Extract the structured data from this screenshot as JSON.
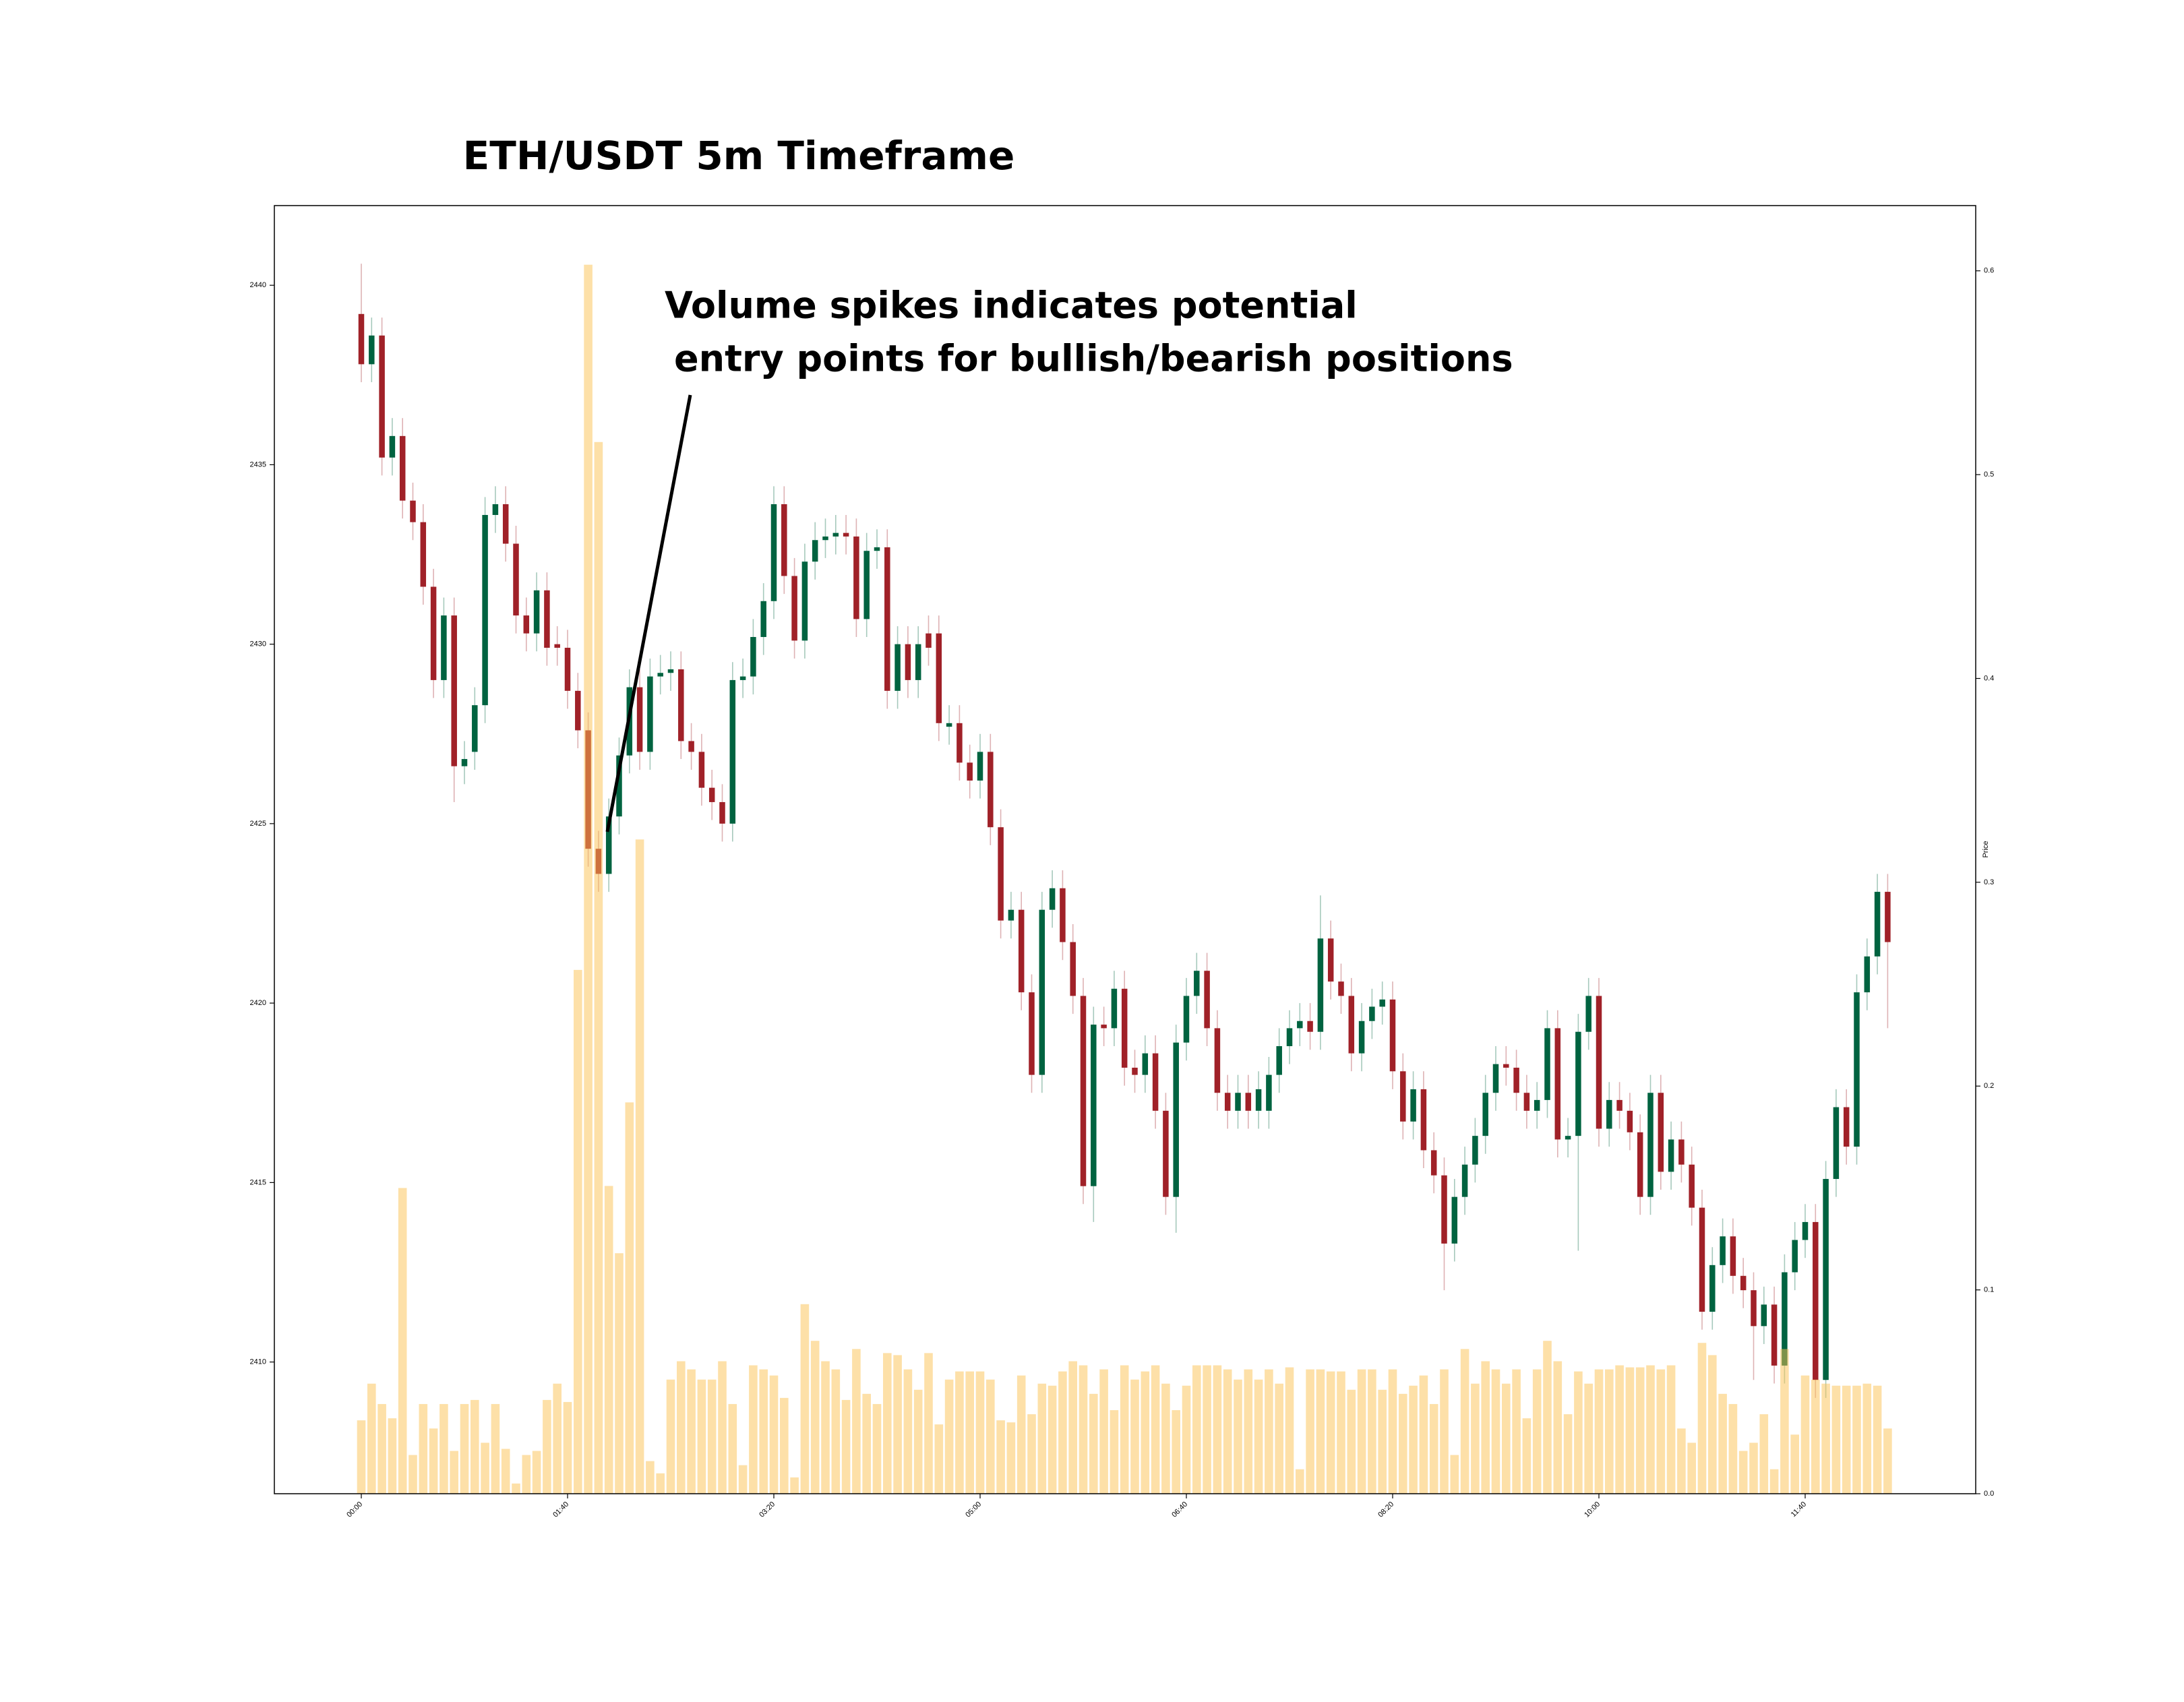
{
  "chart_data": {
    "type": "candlestick",
    "title": "ETH/USDT 5m Timeframe",
    "annotation": [
      "Volume spikes indicates potential",
      "entry points for bullish/bearish positions"
    ],
    "y2label": "Price",
    "up_color": "#006340",
    "down_color": "#a02128",
    "volume_color": "#fbc252",
    "categories": [
      "00:00",
      null,
      null,
      null,
      null,
      null,
      null,
      null,
      null,
      null,
      null,
      null,
      null,
      null,
      null,
      null,
      null,
      null,
      null,
      null,
      "01:40",
      null,
      null,
      null,
      null,
      null,
      null,
      null,
      null,
      null,
      null,
      null,
      null,
      null,
      null,
      null,
      null,
      null,
      null,
      null,
      "03:20",
      null,
      null,
      null,
      null,
      null,
      null,
      null,
      null,
      null,
      null,
      null,
      null,
      null,
      null,
      null,
      null,
      null,
      null,
      null,
      "05:00",
      null,
      null,
      null,
      null,
      null,
      null,
      null,
      null,
      null,
      null,
      null,
      null,
      null,
      null,
      null,
      null,
      null,
      null,
      null,
      "06:40",
      null,
      null,
      null,
      null,
      null,
      null,
      null,
      null,
      null,
      null,
      null,
      null,
      null,
      null,
      null,
      null,
      null,
      null,
      null,
      "08:20",
      null,
      null,
      null,
      null,
      null,
      null,
      null,
      null,
      null,
      null,
      null,
      null,
      null,
      null,
      null,
      null,
      null,
      null,
      null,
      "10:00",
      null,
      null,
      null,
      null,
      null,
      null,
      null,
      null,
      null,
      null,
      null,
      null,
      null,
      null,
      null,
      null,
      null,
      null,
      null,
      "11:40",
      null,
      null,
      null,
      null,
      null,
      null,
      null,
      null
    ],
    "open": [
      2439.2,
      2437.8,
      2438.6,
      2435.2,
      2435.8,
      2434.0,
      2433.4,
      2431.6,
      2429.0,
      2430.8,
      2426.6,
      2427.0,
      2428.3,
      2433.6,
      2433.9,
      2432.8,
      2430.8,
      2430.3,
      2431.5,
      2430.0,
      2429.9,
      2428.7,
      2427.6,
      2424.3,
      2423.6,
      2425.2,
      2426.9,
      2428.8,
      2427.0,
      2429.1,
      2429.2,
      2429.3,
      2427.3,
      2427.0,
      2426.0,
      2425.6,
      2425.0,
      2429.0,
      2429.1,
      2430.2,
      2431.2,
      2433.9,
      2431.9,
      2430.1,
      2432.3,
      2432.9,
      2433.0,
      2433.1,
      2433.0,
      2430.7,
      2432.6,
      2432.7,
      2428.7,
      2430.0,
      2429.0,
      2430.3,
      2430.3,
      2427.7,
      2427.8,
      2426.7,
      2426.2,
      2427.0,
      2424.9,
      2422.3,
      2422.6,
      2420.3,
      2418.0,
      2422.6,
      2423.2,
      2421.7,
      2420.2,
      2414.9,
      2419.4,
      2419.3,
      2420.4,
      2418.2,
      2418.0,
      2418.6,
      2417.0,
      2414.6,
      2418.9,
      2420.2,
      2420.9,
      2419.3,
      2417.5,
      2417.0,
      2417.5,
      2417.0,
      2417.0,
      2418.0,
      2418.8,
      2419.3,
      2419.5,
      2419.2,
      2421.8,
      2420.6,
      2420.2,
      2418.6,
      2419.5,
      2419.9,
      2420.1,
      2418.1,
      2416.7,
      2417.6,
      2415.9,
      2415.2,
      2413.3,
      2414.6,
      2415.5,
      2416.3,
      2417.5,
      2418.3,
      2418.2,
      2417.5,
      2417.0,
      2417.3,
      2419.3,
      2416.2,
      2416.3,
      2419.2,
      2420.2,
      2416.5,
      2417.3,
      2417.0,
      2416.4,
      2414.6,
      2417.5,
      2415.3,
      2416.2,
      2415.5,
      2414.3,
      2411.4,
      2412.7,
      2413.5,
      2412.4,
      2412.0,
      2411.0,
      2411.6,
      2409.9,
      2412.5,
      2413.4,
      2413.9,
      2409.5,
      2415.1,
      2417.1,
      2416.0,
      2420.3,
      2421.3,
      2423.1
    ],
    "high": [
      2440.6,
      2439.1,
      2439.1,
      2436.3,
      2436.3,
      2434.5,
      2433.9,
      2432.1,
      2431.3,
      2431.3,
      2427.3,
      2428.8,
      2434.1,
      2434.4,
      2434.4,
      2433.3,
      2431.3,
      2432.0,
      2432.0,
      2430.5,
      2430.4,
      2429.2,
      2428.1,
      2424.8,
      2425.7,
      2427.4,
      2429.3,
      2429.3,
      2429.6,
      2429.7,
      2429.8,
      2429.8,
      2427.8,
      2427.5,
      2426.5,
      2426.1,
      2429.5,
      2429.6,
      2430.7,
      2431.7,
      2434.4,
      2434.4,
      2432.4,
      2432.8,
      2433.4,
      2433.5,
      2433.6,
      2433.6,
      2433.5,
      2433.1,
      2433.2,
      2433.2,
      2430.5,
      2430.5,
      2430.5,
      2430.8,
      2430.8,
      2428.3,
      2428.3,
      2427.2,
      2427.5,
      2427.5,
      2425.4,
      2423.1,
      2423.1,
      2420.8,
      2423.1,
      2423.7,
      2423.7,
      2422.2,
      2420.7,
      2419.9,
      2419.9,
      2420.9,
      2420.9,
      2418.7,
      2419.1,
      2419.1,
      2417.5,
      2419.4,
      2420.7,
      2421.4,
      2421.4,
      2419.8,
      2418.0,
      2418.0,
      2418.0,
      2418.1,
      2418.5,
      2419.3,
      2419.8,
      2420.0,
      2420.0,
      2423.0,
      2422.3,
      2421.1,
      2420.7,
      2420.0,
      2420.4,
      2420.6,
      2420.6,
      2418.6,
      2418.1,
      2418.1,
      2416.4,
      2415.7,
      2415.1,
      2416.0,
      2416.8,
      2418.0,
      2418.8,
      2418.8,
      2418.7,
      2418.0,
      2417.8,
      2419.8,
      2419.8,
      2416.8,
      2419.7,
      2420.7,
      2420.7,
      2417.8,
      2417.8,
      2417.5,
      2416.9,
      2418.0,
      2418.0,
      2416.7,
      2416.7,
      2416.0,
      2414.8,
      2413.2,
      2414.0,
      2414.0,
      2412.9,
      2412.5,
      2412.1,
      2412.1,
      2413.0,
      2413.9,
      2414.4,
      2414.4,
      2415.6,
      2417.6,
      2417.6,
      2420.8,
      2421.8,
      2423.6,
      2423.6
    ],
    "low": [
      2437.3,
      2437.3,
      2434.7,
      2434.7,
      2433.5,
      2432.9,
      2431.1,
      2428.5,
      2428.5,
      2425.6,
      2426.1,
      2426.5,
      2427.8,
      2433.1,
      2432.3,
      2430.3,
      2429.8,
      2429.8,
      2429.4,
      2429.4,
      2428.2,
      2427.1,
      2423.8,
      2423.1,
      2423.1,
      2424.7,
      2426.4,
      2426.5,
      2426.5,
      2428.6,
      2428.7,
      2426.8,
      2426.5,
      2425.5,
      2425.1,
      2424.5,
      2424.5,
      2428.5,
      2428.6,
      2429.7,
      2430.7,
      2431.4,
      2429.6,
      2429.6,
      2431.8,
      2432.4,
      2432.5,
      2432.5,
      2430.2,
      2430.2,
      2432.1,
      2428.2,
      2428.2,
      2428.5,
      2428.5,
      2429.4,
      2427.3,
      2427.2,
      2426.2,
      2425.7,
      2425.7,
      2424.4,
      2421.8,
      2421.8,
      2419.8,
      2417.5,
      2417.5,
      2422.1,
      2421.2,
      2419.7,
      2414.4,
      2413.9,
      2418.8,
      2418.8,
      2417.7,
      2417.5,
      2417.5,
      2416.5,
      2414.1,
      2413.6,
      2418.4,
      2419.7,
      2418.8,
      2417.0,
      2416.5,
      2416.5,
      2416.5,
      2416.5,
      2416.5,
      2417.5,
      2418.3,
      2418.8,
      2418.7,
      2418.7,
      2420.1,
      2419.7,
      2418.1,
      2418.1,
      2419.0,
      2419.4,
      2417.6,
      2416.2,
      2416.2,
      2415.4,
      2414.7,
      2412.0,
      2412.8,
      2414.1,
      2415.0,
      2415.8,
      2417.0,
      2417.7,
      2417.0,
      2416.5,
      2416.5,
      2416.8,
      2415.7,
      2415.7,
      2413.1,
      2418.7,
      2416.0,
      2416.0,
      2416.5,
      2415.9,
      2414.1,
      2414.1,
      2414.8,
      2414.8,
      2415.0,
      2413.8,
      2410.9,
      2410.9,
      2412.2,
      2411.9,
      2411.5,
      2409.5,
      2410.5,
      2409.4,
      2409.4,
      2412.0,
      2412.9,
      2409.0,
      2409.0,
      2414.6,
      2415.5,
      2415.5,
      2419.8,
      2420.8,
      2419.3
    ],
    "close": [
      2437.8,
      2438.6,
      2435.2,
      2435.8,
      2434.0,
      2433.4,
      2431.6,
      2429.0,
      2430.8,
      2426.6,
      2426.8,
      2428.3,
      2433.6,
      2433.9,
      2432.8,
      2430.8,
      2430.3,
      2431.5,
      2429.9,
      2429.9,
      2428.7,
      2427.6,
      2424.3,
      2423.6,
      2425.2,
      2426.9,
      2428.8,
      2427.0,
      2429.1,
      2429.2,
      2429.3,
      2427.3,
      2427.0,
      2426.0,
      2425.6,
      2425.0,
      2429.0,
      2429.1,
      2430.2,
      2431.2,
      2433.9,
      2431.9,
      2430.1,
      2432.3,
      2432.9,
      2433.0,
      2433.1,
      2433.0,
      2430.7,
      2432.6,
      2432.7,
      2428.7,
      2430.0,
      2429.0,
      2430.0,
      2429.9,
      2427.8,
      2427.8,
      2426.7,
      2426.2,
      2427.0,
      2424.9,
      2422.3,
      2422.6,
      2420.3,
      2418.0,
      2422.6,
      2423.2,
      2421.7,
      2420.2,
      2414.9,
      2419.4,
      2419.3,
      2420.4,
      2418.2,
      2418.0,
      2418.6,
      2417.0,
      2414.6,
      2418.9,
      2420.2,
      2420.9,
      2419.3,
      2417.5,
      2417.0,
      2417.5,
      2417.0,
      2417.6,
      2418.0,
      2418.8,
      2419.3,
      2419.5,
      2419.2,
      2421.8,
      2420.6,
      2420.2,
      2418.6,
      2419.5,
      2419.9,
      2420.1,
      2418.1,
      2416.7,
      2417.6,
      2415.9,
      2415.2,
      2413.3,
      2414.6,
      2415.5,
      2416.3,
      2417.5,
      2418.3,
      2418.2,
      2417.5,
      2417.0,
      2417.3,
      2419.3,
      2416.2,
      2416.3,
      2419.2,
      2420.2,
      2416.5,
      2417.3,
      2417.0,
      2416.4,
      2414.6,
      2417.5,
      2415.3,
      2416.2,
      2415.5,
      2414.3,
      2411.4,
      2412.7,
      2413.5,
      2412.4,
      2412.0,
      2411.0,
      2411.6,
      2409.9,
      2412.5,
      2413.4,
      2413.9,
      2409.5,
      2415.1,
      2417.1,
      2416.0,
      2420.3,
      2421.3,
      2423.1,
      2421.7
    ],
    "volume": [
      0.036,
      0.054,
      0.044,
      0.037,
      0.15,
      0.019,
      0.044,
      0.032,
      0.044,
      0.021,
      0.044,
      0.046,
      0.025,
      0.044,
      0.022,
      0.005,
      0.019,
      0.021,
      0.046,
      0.054,
      0.045,
      0.257,
      0.603,
      0.516,
      0.151,
      0.118,
      0.192,
      0.321,
      0.016,
      0.01,
      0.056,
      0.065,
      0.061,
      0.056,
      0.056,
      0.065,
      0.044,
      0.014,
      0.063,
      0.061,
      0.058,
      0.047,
      0.008,
      0.093,
      0.075,
      0.065,
      0.061,
      0.046,
      0.071,
      0.049,
      0.044,
      0.069,
      0.068,
      0.061,
      0.051,
      0.069,
      0.034,
      0.056,
      0.06,
      0.06,
      0.06,
      0.056,
      0.036,
      0.035,
      0.058,
      0.039,
      0.054,
      0.053,
      0.06,
      0.065,
      0.063,
      0.049,
      0.061,
      0.041,
      0.063,
      0.056,
      0.06,
      0.063,
      0.054,
      0.041,
      0.053,
      0.063,
      0.063,
      0.063,
      0.061,
      0.056,
      0.061,
      0.056,
      0.061,
      0.054,
      0.062,
      0.012,
      0.061,
      0.061,
      0.06,
      0.06,
      0.051,
      0.061,
      0.061,
      0.051,
      0.061,
      0.049,
      0.053,
      0.058,
      0.044,
      0.061,
      0.019,
      0.071,
      0.054,
      0.065,
      0.061,
      0.054,
      0.061,
      0.037,
      0.061,
      0.075,
      0.065,
      0.039,
      0.06,
      0.054,
      0.061,
      0.061,
      0.063,
      0.062,
      0.062,
      0.063,
      0.061,
      0.063,
      0.032,
      0.025,
      0.074,
      0.068,
      0.049,
      0.044,
      0.021,
      0.025,
      0.039,
      0.012,
      0.071,
      0.029,
      0.058,
      0.056,
      0.054,
      0.053,
      0.053,
      0.053,
      0.054,
      0.053,
      0.032
    ],
    "ylim": [
      2406.33,
      2442.22
    ],
    "yticks": [
      2410,
      2415,
      2420,
      2425,
      2430,
      2435,
      2440
    ],
    "y2lim": [
      0,
      0.632
    ],
    "y2ticks": [
      {
        "value": 0,
        "label": "0.0"
      },
      0.1,
      0.2,
      0.3,
      0.4,
      0.5,
      0.6
    ]
  }
}
